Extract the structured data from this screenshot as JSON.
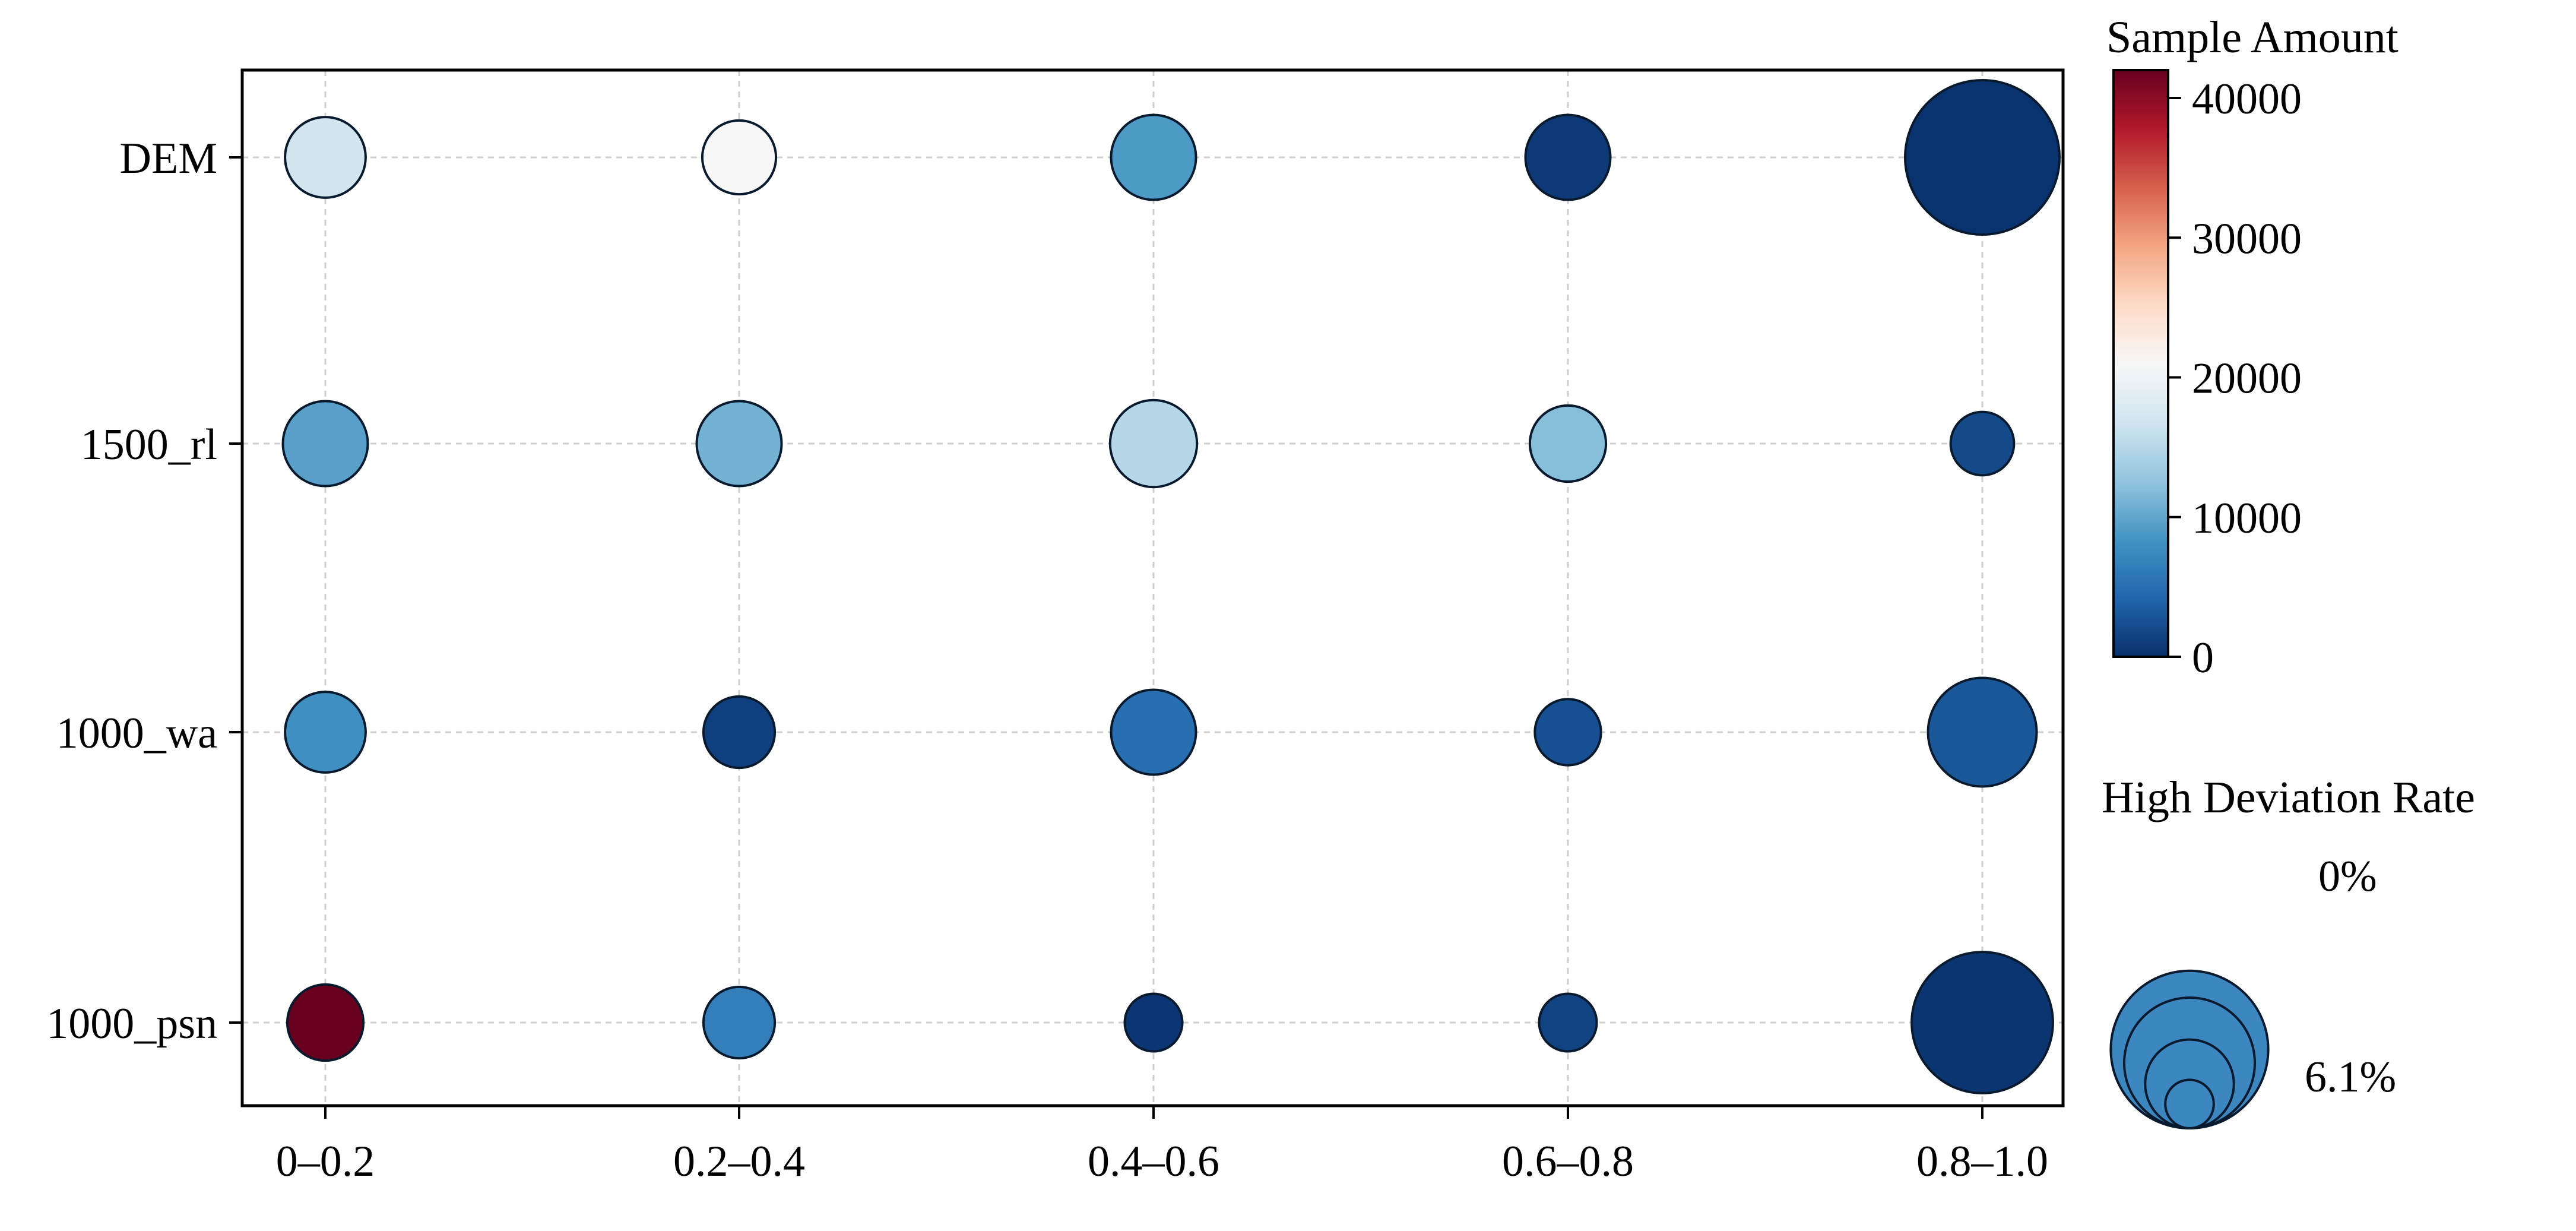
{
  "chart_data": {
    "type": "scatter",
    "subtype": "bubble-matrix",
    "x_categories": [
      "0–0.2",
      "0.2–0.4",
      "0.4–0.6",
      "0.6–0.8",
      "0.8–1.0"
    ],
    "y_categories": [
      "DEM",
      "1500_rl",
      "1000_wa",
      "1000_psn"
    ],
    "grid": true,
    "points": [
      {
        "x": "0–0.2",
        "y": "DEM",
        "sample_amount": 17000,
        "high_deviation_rate": 1.2
      },
      {
        "x": "0.2–0.4",
        "y": "DEM",
        "sample_amount": 21000,
        "high_deviation_rate": 0.9
      },
      {
        "x": "0.4–0.6",
        "y": "DEM",
        "sample_amount": 9000,
        "high_deviation_rate": 1.4
      },
      {
        "x": "0.6–0.8",
        "y": "DEM",
        "sample_amount": 800,
        "high_deviation_rate": 1.4
      },
      {
        "x": "0.8–1.0",
        "y": "DEM",
        "sample_amount": 200,
        "high_deviation_rate": 6.1
      },
      {
        "x": "0–0.2",
        "y": "1500_rl",
        "sample_amount": 9500,
        "high_deviation_rate": 1.4
      },
      {
        "x": "0.2–0.4",
        "y": "1500_rl",
        "sample_amount": 11000,
        "high_deviation_rate": 1.4
      },
      {
        "x": "0.4–0.6",
        "y": "1500_rl",
        "sample_amount": 15000,
        "high_deviation_rate": 1.5
      },
      {
        "x": "0.6–0.8",
        "y": "1500_rl",
        "sample_amount": 12000,
        "high_deviation_rate": 1.0
      },
      {
        "x": "0.8–1.0",
        "y": "1500_rl",
        "sample_amount": 2000,
        "high_deviation_rate": 0.5
      },
      {
        "x": "0–0.2",
        "y": "1000_wa",
        "sample_amount": 8000,
        "high_deviation_rate": 1.2
      },
      {
        "x": "0.2–0.4",
        "y": "1000_wa",
        "sample_amount": 1200,
        "high_deviation_rate": 0.8
      },
      {
        "x": "0.4–0.6",
        "y": "1000_wa",
        "sample_amount": 5000,
        "high_deviation_rate": 1.4
      },
      {
        "x": "0.6–0.8",
        "y": "1000_wa",
        "sample_amount": 2500,
        "high_deviation_rate": 0.6
      },
      {
        "x": "0.8–1.0",
        "y": "1000_wa",
        "sample_amount": 3000,
        "high_deviation_rate": 2.7
      },
      {
        "x": "0–0.2",
        "y": "1000_psn",
        "sample_amount": 42000,
        "high_deviation_rate": 1.0
      },
      {
        "x": "0.2–0.4",
        "y": "1000_psn",
        "sample_amount": 6500,
        "high_deviation_rate": 0.8
      },
      {
        "x": "0.4–0.6",
        "y": "1000_psn",
        "sample_amount": 500,
        "high_deviation_rate": 0.3
      },
      {
        "x": "0.6–0.8",
        "y": "1000_psn",
        "sample_amount": 1500,
        "high_deviation_rate": 0.3
      },
      {
        "x": "0.8–1.0",
        "y": "1000_psn",
        "sample_amount": 400,
        "high_deviation_rate": 5.0
      }
    ],
    "color_scale": {
      "title": "Sample Amount",
      "min": 0,
      "max": 42000,
      "ticks": [
        "0",
        "10000",
        "20000",
        "30000",
        "40000"
      ],
      "colors": [
        "#08306b",
        "#2166ac",
        "#4393c3",
        "#92c5de",
        "#d1e5f0",
        "#f7f7f7",
        "#fddbc7",
        "#f4a582",
        "#d6604d",
        "#b2182b",
        "#67001f"
      ]
    },
    "size_scale": {
      "title": "High Deviation Rate",
      "min": 0,
      "max": 6.1,
      "label_min": "0%",
      "label_max": "6.1%",
      "legend_values": [
        0,
        1.5,
        4.0,
        6.1
      ],
      "legend_color": "#3c87c0"
    }
  }
}
